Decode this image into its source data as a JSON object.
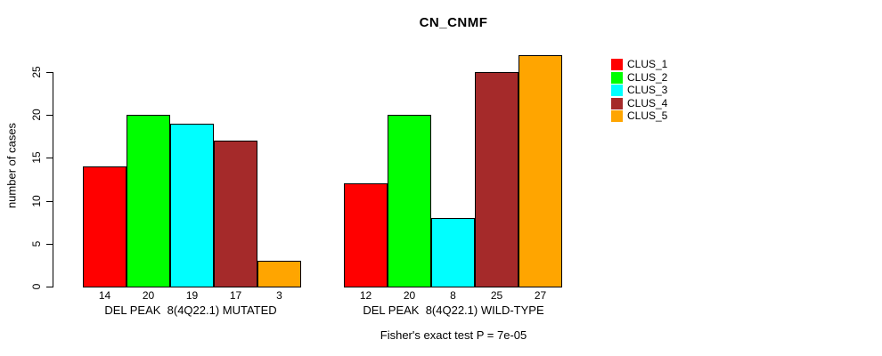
{
  "chart_data": {
    "type": "bar",
    "title": "CN_CNMF",
    "ylabel": "number of cases",
    "ylim": [
      0,
      25
    ],
    "yticks": [
      0,
      5,
      10,
      15,
      20,
      25
    ],
    "grid": false,
    "legend_position": "top-right",
    "bar_border_color": "#000000",
    "groups": [
      {
        "label": "DEL PEAK  8(4Q22.1) MUTATED",
        "values": [
          14,
          20,
          19,
          17,
          3
        ]
      },
      {
        "label": "DEL PEAK  8(4Q22.1) WILD-TYPE",
        "values": [
          12,
          20,
          8,
          25,
          27
        ]
      }
    ],
    "series": [
      {
        "name": "CLUS_1",
        "color": "#FF0000",
        "values": [
          14,
          12
        ]
      },
      {
        "name": "CLUS_2",
        "color": "#00FF00",
        "values": [
          20,
          20
        ]
      },
      {
        "name": "CLUS_3",
        "color": "#00FFFF",
        "values": [
          19,
          8
        ]
      },
      {
        "name": "CLUS_4",
        "color": "#A52A2A",
        "values": [
          17,
          25
        ]
      },
      {
        "name": "CLUS_5",
        "color": "#FFA500",
        "values": [
          3,
          27
        ]
      }
    ],
    "annotation": "Fisher's exact test P = 7e-05"
  }
}
